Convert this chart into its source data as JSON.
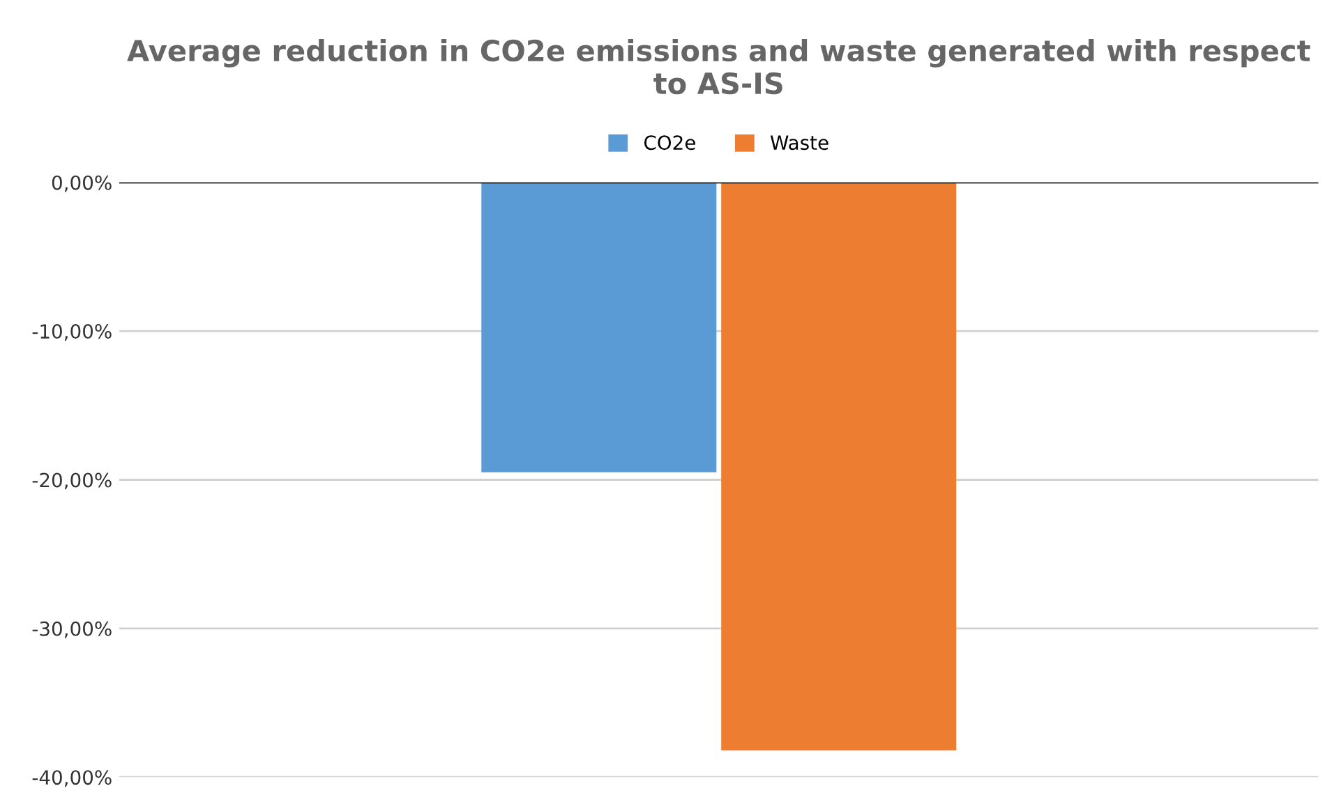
{
  "chart_data": {
    "type": "bar",
    "title": "Average reduction in CO2e emissions and waste generated with respect to AS-IS",
    "categories": [
      null
    ],
    "series": [
      {
        "name": "CO2e",
        "color": "#5b9bd5",
        "values": [
          -19.5
        ]
      },
      {
        "name": "Waste",
        "color": "#ed7d31",
        "values": [
          -38.2
        ]
      }
    ],
    "ylim": [
      -40,
      0
    ],
    "yticks": [
      {
        "value": 0,
        "label": "0,00%"
      },
      {
        "value": -10,
        "label": "-10,00%"
      },
      {
        "value": -20,
        "label": "-20,00%"
      },
      {
        "value": -30,
        "label": "-30,00%"
      },
      {
        "value": -40,
        "label": "-40,00%"
      }
    ],
    "grid": "y",
    "legend": "top"
  }
}
